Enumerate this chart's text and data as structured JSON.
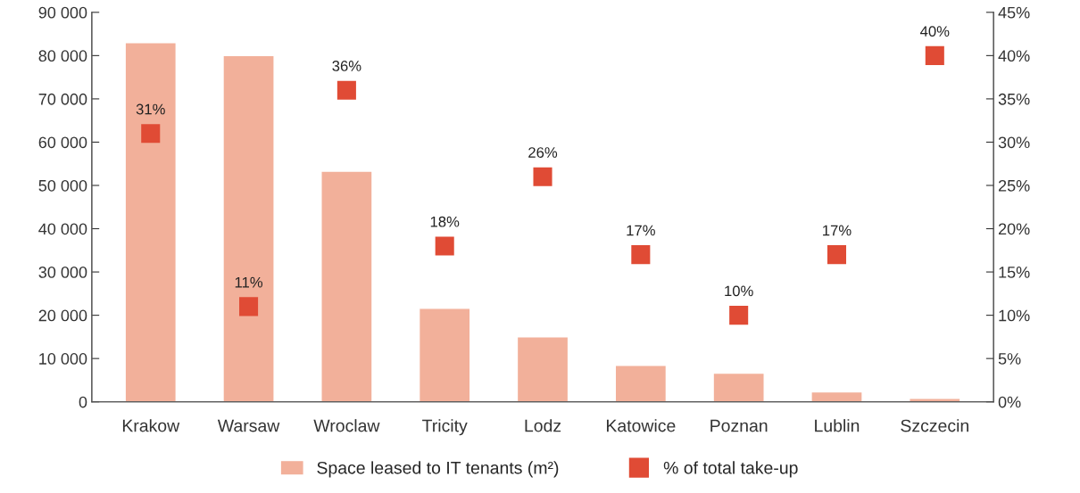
{
  "chart_data": {
    "type": "bar",
    "categories": [
      "Krakow",
      "Warsaw",
      "Wroclaw",
      "Tricity",
      "Lodz",
      "Katowice",
      "Poznan",
      "Lublin",
      "Szczecin"
    ],
    "series": [
      {
        "name": "Space leased to IT tenants (m²)",
        "color": "#f2b09a",
        "values": [
          83000,
          80000,
          53300,
          21600,
          15000,
          8400,
          6600,
          2300,
          800
        ]
      },
      {
        "name": "% of total take-up",
        "type": "scatter",
        "axis": "y2",
        "color": "#e04b35",
        "marker": "square",
        "values": [
          31,
          11,
          36,
          18,
          26,
          17,
          10,
          17,
          40
        ],
        "value_labels": [
          "31%",
          "11%",
          "36%",
          "18%",
          "26%",
          "17%",
          "10%",
          "17%",
          "40%"
        ]
      }
    ],
    "ylim": [
      0,
      90000
    ],
    "yticks": [
      0,
      {
        "value": 10000,
        "label": "10 000"
      },
      {
        "value": 20000,
        "label": "20 000"
      },
      {
        "value": 30000,
        "label": "30 000"
      },
      {
        "value": 40000,
        "label": "40 000"
      },
      {
        "value": 50000,
        "label": "50 000"
      },
      {
        "value": 60000,
        "label": "60 000"
      },
      {
        "value": 70000,
        "label": "70 000"
      },
      {
        "value": 80000,
        "label": "80 000"
      },
      {
        "value": 90000,
        "label": "90 000"
      }
    ],
    "y2lim": [
      0,
      45
    ],
    "y2ticks": [
      {
        "value": 0,
        "label": "0%"
      },
      {
        "value": 5,
        "label": "5%"
      },
      {
        "value": 10,
        "label": "10%"
      },
      {
        "value": 15,
        "label": "15%"
      },
      {
        "value": 20,
        "label": "20%"
      },
      {
        "value": 25,
        "label": "25%"
      },
      {
        "value": 30,
        "label": "30%"
      },
      {
        "value": 35,
        "label": "35%"
      },
      {
        "value": 40,
        "label": "40%"
      },
      {
        "value": 45,
        "label": "45%"
      }
    ],
    "grid": false,
    "legend": "bottom"
  }
}
